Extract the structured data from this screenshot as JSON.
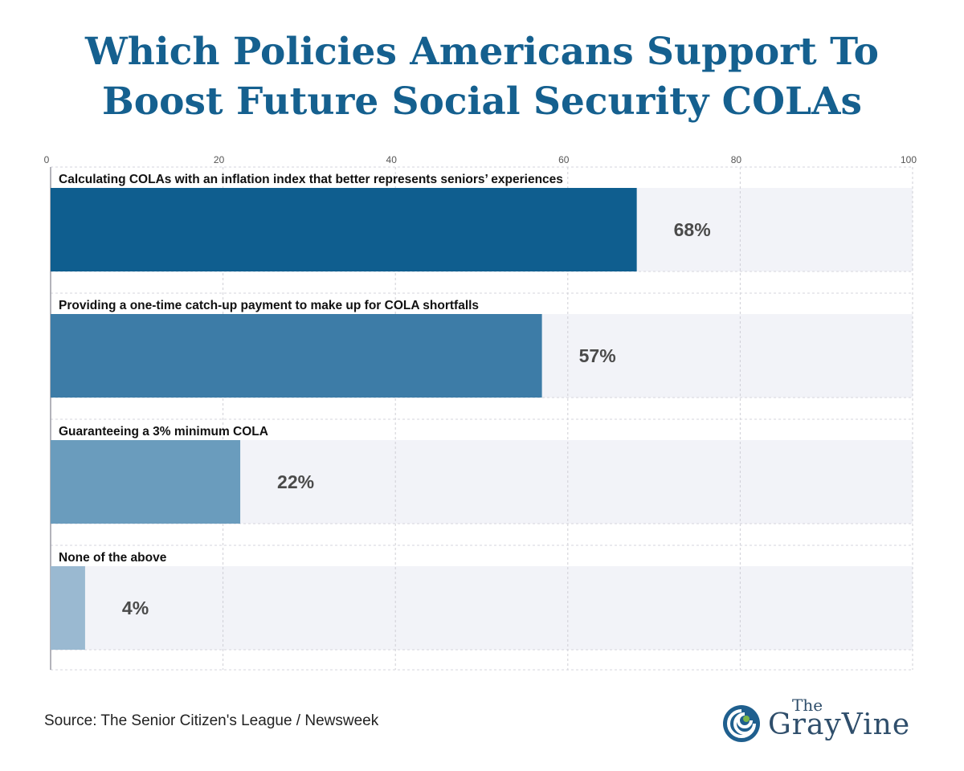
{
  "title_line1": "Which Policies Americans Support To",
  "title_line2": "Boost Future Social Security COLAs",
  "source": "Source: The Senior Citizen's League / Newsweek",
  "logo": {
    "the": "The",
    "name": "GrayVine",
    "icon": "swirl-logo-icon"
  },
  "colors": {
    "title": "#15608f",
    "track": "#f2f3f8",
    "bars": [
      "#0f5e8f",
      "#3d7ca7",
      "#6a9cbd",
      "#9ab9d1"
    ]
  },
  "chart_data": {
    "type": "bar",
    "orientation": "horizontal",
    "categories": [
      "Calculating COLAs with an inflation index that better represents seniors’ experiences",
      "Providing a one-time catch-up payment to make up for COLA shortfalls",
      "Guaranteeing a 3% minimum COLA",
      "None of the above"
    ],
    "values": [
      68,
      57,
      22,
      4
    ],
    "value_labels": [
      "68%",
      "57%",
      "22%",
      "4%"
    ],
    "xlim": [
      0,
      100
    ],
    "xticks": [
      0,
      20,
      40,
      60,
      80,
      100
    ],
    "tick_position": "top",
    "grid": true
  }
}
